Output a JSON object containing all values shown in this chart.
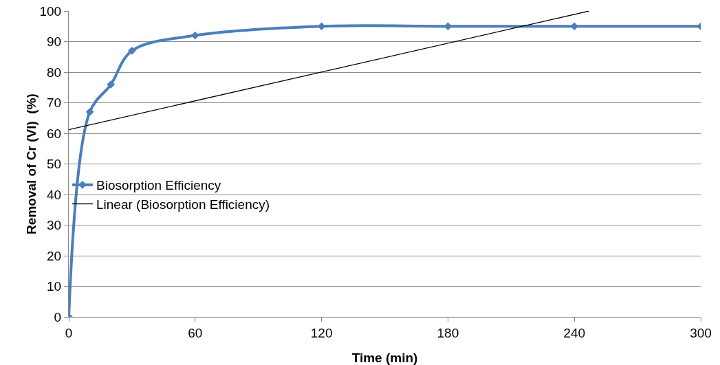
{
  "chart_data": {
    "type": "line",
    "xlabel": "Time (min)",
    "ylabel": "Removal of Cr (VI)  (%)",
    "x": [
      0,
      10,
      20,
      30,
      60,
      120,
      180,
      240,
      300
    ],
    "series": [
      {
        "name": "Biosorption Efficiency",
        "color": "#4a7ebb",
        "values": [
          0,
          67,
          76,
          87,
          92,
          95,
          95,
          95,
          95
        ],
        "marker": "diamond"
      },
      {
        "name": "Linear (Biosorption Efficiency)",
        "color": "#000000",
        "type": "line",
        "x": [
          0,
          247
        ],
        "values": [
          61.2,
          100
        ],
        "marker": "none"
      }
    ],
    "xlim": [
      0,
      300
    ],
    "xticks": [
      0,
      60,
      120,
      180,
      240,
      300
    ],
    "ylim": [
      0,
      100
    ],
    "yticks": [
      0,
      10,
      20,
      30,
      40,
      50,
      60,
      70,
      80,
      90,
      100
    ],
    "grid": "y",
    "legend": "center",
    "line_style": "solid"
  }
}
